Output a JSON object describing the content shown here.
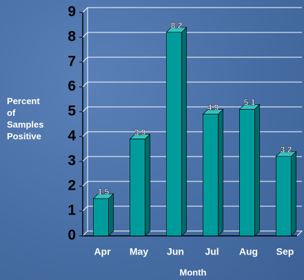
{
  "chart_data": {
    "type": "bar",
    "ylabel": "Percent of Samples Positive",
    "xlabel": "Month",
    "categories": [
      "Apr",
      "May",
      "Jun",
      "Jul",
      "Aug",
      "Sep"
    ],
    "values": [
      1.5,
      3.9,
      8.2,
      4.9,
      5.1,
      3.2
    ],
    "color": "#009c9c",
    "ylim": [
      0,
      9
    ],
    "yticks": [
      0,
      1,
      2,
      3,
      4,
      5,
      6,
      7,
      8,
      9
    ],
    "grid": true
  }
}
